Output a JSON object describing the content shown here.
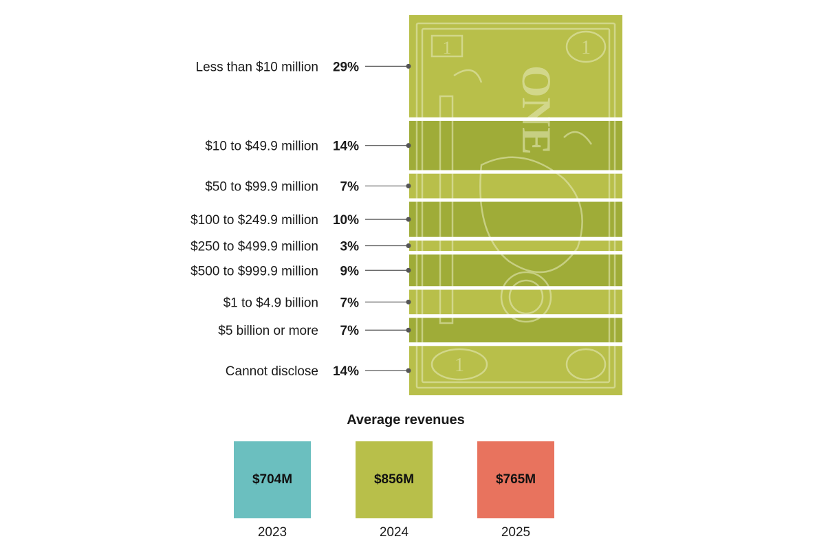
{
  "chart_data": {
    "type": "bar",
    "categories": [
      "Less than $10 million",
      "$10 to $49.9 million",
      "$50 to $99.9 million",
      "$100 to $249.9 million",
      "$250 to $499.9 million",
      "$500 to $999.9 million",
      "$1 to $4.9 billion",
      "$5 billion or more",
      "Cannot disclose"
    ],
    "values": [
      29,
      14,
      7,
      10,
      3,
      9,
      7,
      7,
      14
    ],
    "value_labels": [
      "29%",
      "14%",
      "7%",
      "10%",
      "3%",
      "9%",
      "7%",
      "7%",
      "14%"
    ],
    "unit": "%",
    "bill_text": "ONE",
    "bill_numeral": "1",
    "colors": {
      "light": "#b8bf4a",
      "dark": "#9fac38",
      "line": "#e8ecc0"
    }
  },
  "average_revenues": {
    "title": "Average revenues",
    "items": [
      {
        "year": "2023",
        "value": "$704M",
        "color": "#6bbfbf"
      },
      {
        "year": "2024",
        "value": "$856M",
        "color": "#b8bf4a"
      },
      {
        "year": "2025",
        "value": "$765M",
        "color": "#e8735e"
      }
    ]
  }
}
